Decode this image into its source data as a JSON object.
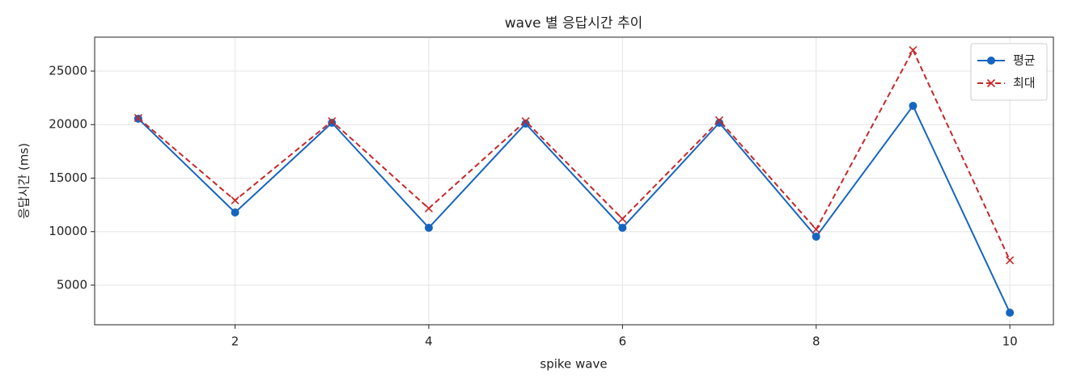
{
  "chart_data": {
    "type": "line",
    "title": "wave 별 응답시간 추이",
    "x_label": "spike wave",
    "y_label": "응답시간 (ms)",
    "x": [
      1,
      2,
      3,
      4,
      5,
      6,
      7,
      8,
      9,
      10
    ],
    "series": [
      {
        "name": "평균",
        "color": "#1565c0",
        "marker": "circle",
        "dash": "solid",
        "values": [
          20550,
          11790,
          20170,
          10360,
          20090,
          10360,
          20170,
          9530,
          21750,
          2430
        ]
      },
      {
        "name": "최대",
        "color": "#c62828",
        "marker": "x",
        "dash": "dashed",
        "values": [
          20620,
          12920,
          20320,
          12170,
          20320,
          11190,
          20400,
          10210,
          26960,
          7320
        ]
      }
    ],
    "xlim": [
      0.55,
      10.45
    ],
    "ylim": [
      1300,
      28170
    ],
    "xticks": [
      2,
      4,
      6,
      8,
      10
    ],
    "yticks": [
      5000,
      10000,
      15000,
      20000,
      25000
    ],
    "grid": true,
    "legend": "upper right"
  }
}
